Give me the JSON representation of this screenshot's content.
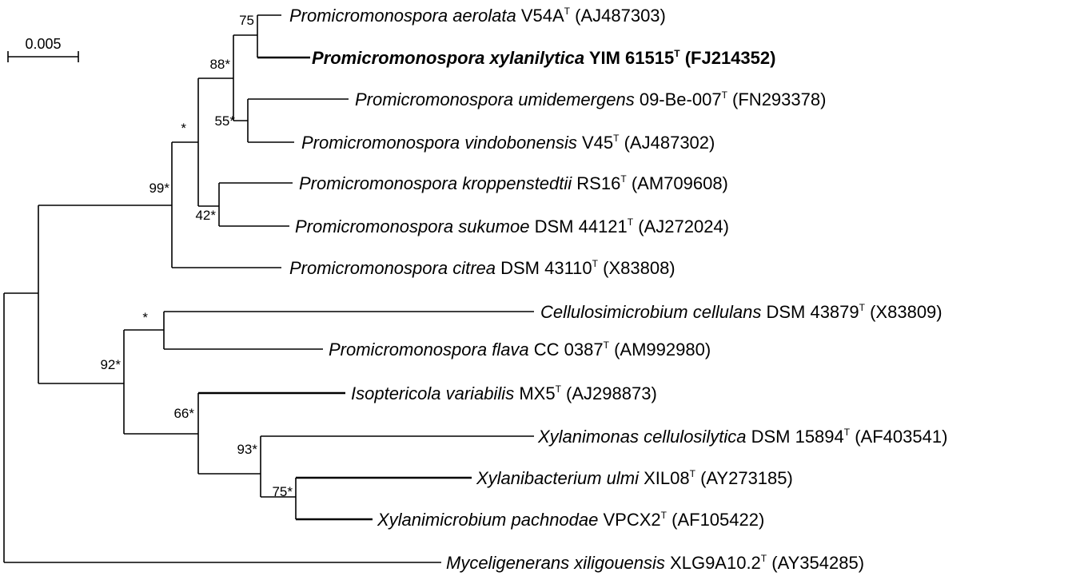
{
  "scale_bar": {
    "label": "0.005"
  },
  "taxa": [
    {
      "id": "aerolata",
      "genus_species": "Promicromonospora aerolata",
      "strain": "V54A",
      "type_mark": "T",
      "accession": "(AJ487303)"
    },
    {
      "id": "xylanilytica",
      "genus_species": "Promicromonospora xylanilytica",
      "strain": "YIM 61515",
      "type_mark": "T",
      "accession": "(FJ214352)"
    },
    {
      "id": "umidemergens",
      "genus_species": "Promicromonospora umidemergens",
      "strain": "09-Be-007",
      "type_mark": "T",
      "accession": "(FN293378)"
    },
    {
      "id": "vindobonensis",
      "genus_species": "Promicromonospora vindobonensis",
      "strain": "V45",
      "type_mark": "T",
      "accession": "(AJ487302)"
    },
    {
      "id": "kroppenstedtii",
      "genus_species": "Promicromonospora kroppenstedtii",
      "strain": "RS16",
      "type_mark": "T",
      "accession": "(AM709608)"
    },
    {
      "id": "sukumoe",
      "genus_species": "Promicromonospora sukumoe",
      "strain": "DSM 44121",
      "type_mark": "T",
      "accession": "(AJ272024)"
    },
    {
      "id": "citrea",
      "genus_species": "Promicromonospora citrea",
      "strain": "DSM 43110",
      "type_mark": "T",
      "accession": "(X83808)"
    },
    {
      "id": "cellulans",
      "genus_species": "Cellulosimicrobium cellulans",
      "strain": "DSM 43879",
      "type_mark": "T",
      "accession": "(X83809)"
    },
    {
      "id": "flava",
      "genus_species": "Promicromonospora flava",
      "strain": "CC 0387",
      "type_mark": "T",
      "accession": "(AM992980)"
    },
    {
      "id": "isoptericola",
      "genus_species": "Isoptericola variabilis",
      "strain": "MX5",
      "type_mark": "T",
      "accession": "(AJ298873)"
    },
    {
      "id": "xylanimonas",
      "genus_species": "Xylanimonas cellulosilytica",
      "strain": "DSM 15894",
      "type_mark": "T",
      "accession": "(AF403541)"
    },
    {
      "id": "xylanibacterium",
      "genus_species": "Xylanibacterium ulmi",
      "strain": "XIL08",
      "type_mark": "T",
      "accession": "(AY273185)"
    },
    {
      "id": "xylanimicrobium",
      "genus_species": "Xylanimicrobium pachnodae",
      "strain": "VPCX2",
      "type_mark": "T",
      "accession": "(AF105422)"
    },
    {
      "id": "myceligenerans",
      "genus_species": "Myceligenerans xiligouensis",
      "strain": "XLG9A10.2",
      "type_mark": "T",
      "accession": "(AY354285)"
    }
  ],
  "bootstrap": {
    "n75a": "75",
    "n88": "88*",
    "n55": "55*",
    "nstar1": "*",
    "n99": "99*",
    "n42": "42*",
    "nstar2": "*",
    "n92": "92*",
    "n66": "66*",
    "n93": "93*",
    "n75b": "75*"
  }
}
